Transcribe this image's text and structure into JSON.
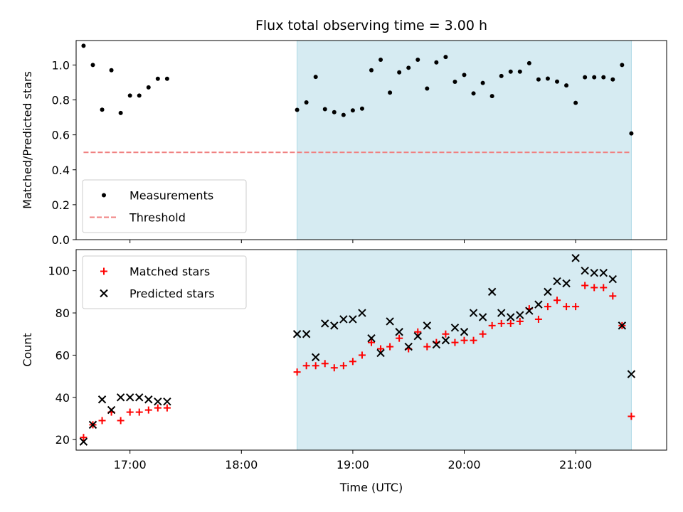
{
  "chart_data": {
    "type": "scatter",
    "title": "Flux total observing time = 3.00 h",
    "xlabel": "Time (UTC)",
    "xlim": [
      "16:31",
      "21:49"
    ],
    "x_ticks": [
      "17:00",
      "18:00",
      "19:00",
      "20:00",
      "21:00"
    ],
    "shaded_region": {
      "from": "18:30",
      "to": "21:30",
      "color": "#add8e6"
    },
    "panels": [
      {
        "ylabel": "Matched/Predicted stars",
        "ylim": [
          0,
          1.14
        ],
        "y_ticks": [
          "0.0",
          "0.2",
          "0.4",
          "0.6",
          "0.8",
          "1.0"
        ],
        "legend_position": "lower left",
        "threshold": {
          "name": "Threshold",
          "value": 0.5,
          "from": "16:35",
          "to": "21:30",
          "color": "#f08080",
          "style": "dashed"
        },
        "series": [
          {
            "name": "Measurements",
            "marker": "dot",
            "color": "#000000",
            "points": [
              [
                "16:35",
                1.11
              ],
              [
                "16:40",
                1.0
              ],
              [
                "16:45",
                0.744
              ],
              [
                "16:50",
                0.97
              ],
              [
                "16:55",
                0.725
              ],
              [
                "17:00",
                0.825
              ],
              [
                "17:05",
                0.825
              ],
              [
                "17:10",
                0.872
              ],
              [
                "17:15",
                0.921
              ],
              [
                "17:20",
                0.921
              ],
              [
                "18:30",
                0.743
              ],
              [
                "18:35",
                0.786
              ],
              [
                "18:40",
                0.932
              ],
              [
                "18:45",
                0.747
              ],
              [
                "18:50",
                0.73
              ],
              [
                "18:55",
                0.714
              ],
              [
                "19:00",
                0.74
              ],
              [
                "19:05",
                0.75
              ],
              [
                "19:10",
                0.97
              ],
              [
                "19:15",
                1.03
              ],
              [
                "19:20",
                0.842
              ],
              [
                "19:25",
                0.958
              ],
              [
                "19:30",
                0.984
              ],
              [
                "19:35",
                1.03
              ],
              [
                "19:40",
                0.865
              ],
              [
                "19:45",
                1.015
              ],
              [
                "19:50",
                1.046
              ],
              [
                "19:55",
                0.904
              ],
              [
                "20:00",
                0.943
              ],
              [
                "20:05",
                0.837
              ],
              [
                "20:10",
                0.897
              ],
              [
                "20:15",
                0.822
              ],
              [
                "20:20",
                0.937
              ],
              [
                "20:25",
                0.962
              ],
              [
                "20:30",
                0.962
              ],
              [
                "20:35",
                1.01
              ],
              [
                "20:40",
                0.917
              ],
              [
                "20:45",
                0.922
              ],
              [
                "20:50",
                0.905
              ],
              [
                "20:55",
                0.883
              ],
              [
                "21:00",
                0.783
              ],
              [
                "21:05",
                0.93
              ],
              [
                "21:10",
                0.93
              ],
              [
                "21:15",
                0.93
              ],
              [
                "21:20",
                0.917
              ],
              [
                "21:25",
                1.0
              ],
              [
                "21:30",
                0.608
              ]
            ]
          }
        ]
      },
      {
        "ylabel": "Count",
        "ylim": [
          15,
          110
        ],
        "y_ticks": [
          "20",
          "40",
          "60",
          "80",
          "100"
        ],
        "legend_position": "upper left",
        "series": [
          {
            "name": "Matched stars",
            "marker": "plus",
            "color": "#ff0000",
            "points": [
              [
                "16:35",
                21
              ],
              [
                "16:40",
                27
              ],
              [
                "16:45",
                29
              ],
              [
                "16:50",
                33
              ],
              [
                "16:55",
                29
              ],
              [
                "17:00",
                33
              ],
              [
                "17:05",
                33
              ],
              [
                "17:10",
                34
              ],
              [
                "17:15",
                35
              ],
              [
                "17:20",
                35
              ],
              [
                "18:30",
                52
              ],
              [
                "18:35",
                55
              ],
              [
                "18:40",
                55
              ],
              [
                "18:45",
                56
              ],
              [
                "18:50",
                54
              ],
              [
                "18:55",
                55
              ],
              [
                "19:00",
                57
              ],
              [
                "19:05",
                60
              ],
              [
                "19:10",
                66
              ],
              [
                "19:15",
                63
              ],
              [
                "19:20",
                64
              ],
              [
                "19:25",
                68
              ],
              [
                "19:30",
                63
              ],
              [
                "19:35",
                71
              ],
              [
                "19:40",
                64
              ],
              [
                "19:45",
                66
              ],
              [
                "19:50",
                70
              ],
              [
                "19:55",
                66
              ],
              [
                "20:00",
                67
              ],
              [
                "20:05",
                67
              ],
              [
                "20:10",
                70
              ],
              [
                "20:15",
                74
              ],
              [
                "20:20",
                75
              ],
              [
                "20:25",
                75
              ],
              [
                "20:30",
                76
              ],
              [
                "20:35",
                82
              ],
              [
                "20:40",
                77
              ],
              [
                "20:45",
                83
              ],
              [
                "20:50",
                86
              ],
              [
                "20:55",
                83
              ],
              [
                "21:00",
                83
              ],
              [
                "21:05",
                93
              ],
              [
                "21:10",
                92
              ],
              [
                "21:15",
                92
              ],
              [
                "21:20",
                88
              ],
              [
                "21:25",
                74
              ],
              [
                "21:30",
                31
              ]
            ]
          },
          {
            "name": "Predicted stars",
            "marker": "x",
            "color": "#000000",
            "points": [
              [
                "16:35",
                19
              ],
              [
                "16:40",
                27
              ],
              [
                "16:45",
                39
              ],
              [
                "16:50",
                34
              ],
              [
                "16:55",
                40
              ],
              [
                "17:00",
                40
              ],
              [
                "17:05",
                40
              ],
              [
                "17:10",
                39
              ],
              [
                "17:15",
                38
              ],
              [
                "17:20",
                38
              ],
              [
                "18:30",
                70
              ],
              [
                "18:35",
                70
              ],
              [
                "18:40",
                59
              ],
              [
                "18:45",
                75
              ],
              [
                "18:50",
                74
              ],
              [
                "18:55",
                77
              ],
              [
                "19:00",
                77
              ],
              [
                "19:05",
                80
              ],
              [
                "19:10",
                68
              ],
              [
                "19:15",
                61
              ],
              [
                "19:20",
                76
              ],
              [
                "19:25",
                71
              ],
              [
                "19:30",
                64
              ],
              [
                "19:35",
                69
              ],
              [
                "19:40",
                74
              ],
              [
                "19:45",
                65
              ],
              [
                "19:50",
                67
              ],
              [
                "19:55",
                73
              ],
              [
                "20:00",
                71
              ],
              [
                "20:05",
                80
              ],
              [
                "20:10",
                78
              ],
              [
                "20:15",
                90
              ],
              [
                "20:20",
                80
              ],
              [
                "20:25",
                78
              ],
              [
                "20:30",
                79
              ],
              [
                "20:35",
                81
              ],
              [
                "20:40",
                84
              ],
              [
                "20:45",
                90
              ],
              [
                "20:50",
                95
              ],
              [
                "20:55",
                94
              ],
              [
                "21:00",
                106
              ],
              [
                "21:05",
                100
              ],
              [
                "21:10",
                99
              ],
              [
                "21:15",
                99
              ],
              [
                "21:20",
                96
              ],
              [
                "21:25",
                74
              ],
              [
                "21:30",
                51
              ]
            ]
          }
        ]
      }
    ]
  }
}
